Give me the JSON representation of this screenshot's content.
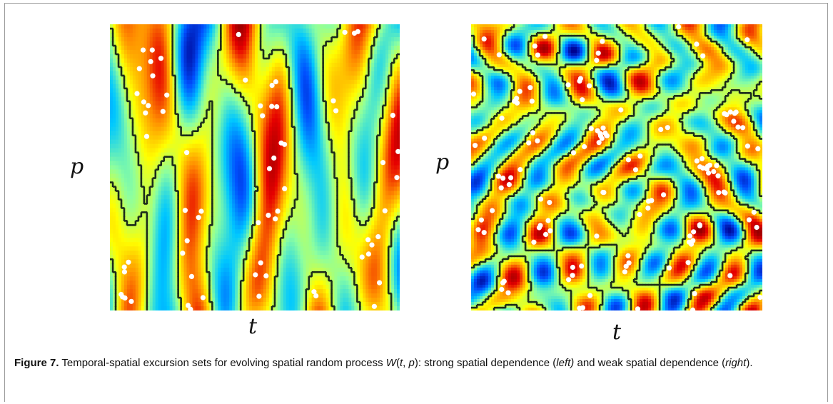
{
  "figure": {
    "left_panel": {
      "x_label": "t",
      "y_label": "p"
    },
    "right_panel": {
      "x_label": "t",
      "y_label": "p"
    },
    "caption": {
      "label": "Figure 7.",
      "text_1": " Temporal-spatial excursion sets for evolving spatial random process ",
      "math": "W",
      "text_2": "(",
      "math_t": "t",
      "text_3": ", ",
      "math_p": "p",
      "text_4": "): strong spatial dependence (",
      "left_word": "left)",
      "text_5": " and weak spatial dependence (",
      "right_word": "right",
      "text_6": ")."
    }
  },
  "colors": {
    "colormap": [
      "#00008f",
      "#0050ff",
      "#00c8ff",
      "#8cffa0",
      "#ffff00",
      "#ff8c00",
      "#e60000",
      "#800000"
    ],
    "contour": "#1b2b1b",
    "points": "#ffffff"
  }
}
